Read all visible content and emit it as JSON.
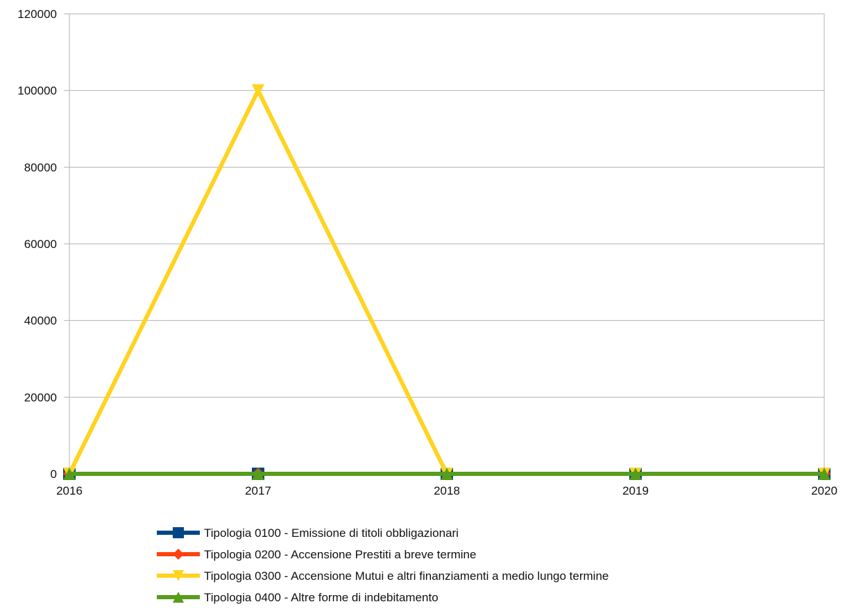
{
  "chart_data": {
    "type": "line",
    "title": "",
    "xlabel": "",
    "ylabel": "",
    "categories": [
      "2016",
      "2017",
      "2018",
      "2019",
      "2020"
    ],
    "ylim": [
      0,
      120000
    ],
    "yticks": [
      0,
      20000,
      40000,
      60000,
      80000,
      100000,
      120000
    ],
    "ytick_labels": [
      "0",
      "20000",
      "40000",
      "60000",
      "80000",
      "100000",
      "120000"
    ],
    "grid": "horizontal",
    "legend_position": "bottom",
    "series": [
      {
        "name": "Tipologia 0100 - Emissione di titoli obbligazionari",
        "values": [
          0,
          0,
          0,
          0,
          0
        ],
        "color": "#004586",
        "marker": "square"
      },
      {
        "name": "Tipologia 0200 - Accensione Prestiti a breve termine",
        "values": [
          0,
          0,
          0,
          0,
          0
        ],
        "color": "#ff420e",
        "marker": "diamond"
      },
      {
        "name": "Tipologia 0300 - Accensione Mutui e altri finanziamenti a medio lungo termine",
        "values": [
          0,
          100000,
          0,
          0,
          0
        ],
        "color": "#ffd320",
        "marker": "triangle-down"
      },
      {
        "name": "Tipologia 0400 - Altre forme di indebitamento",
        "values": [
          0,
          0,
          0,
          0,
          0
        ],
        "color": "#579d1c",
        "marker": "triangle-up"
      }
    ]
  }
}
